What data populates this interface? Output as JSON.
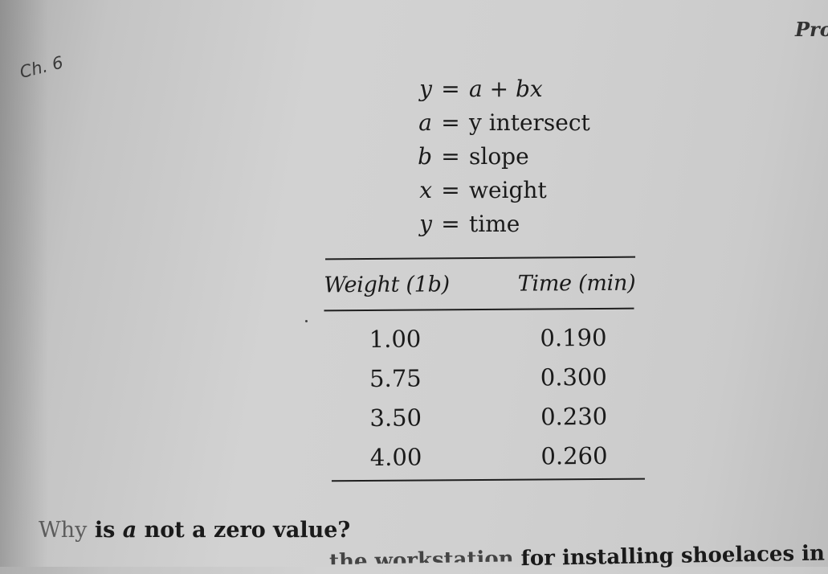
{
  "header_fragment": "Pro",
  "handwritten_note": "Ch. 6",
  "equations": [
    {
      "lhs": "y",
      "sign": "=",
      "rhs": "a + bx"
    },
    {
      "lhs": "a",
      "sign": "=",
      "rhs": "y intersect"
    },
    {
      "lhs": "b",
      "sign": "=",
      "rhs": "slope"
    },
    {
      "lhs": "x",
      "sign": "=",
      "rhs": "weight"
    },
    {
      "lhs": "y",
      "sign": "=",
      "rhs": "time"
    }
  ],
  "table": {
    "headers": [
      "Weight (1b)",
      "Time (min)"
    ],
    "rows": [
      [
        "1.00",
        "0.190"
      ],
      [
        "5.75",
        "0.300"
      ],
      [
        "3.50",
        "0.230"
      ],
      [
        "4.00",
        "0.260"
      ]
    ]
  },
  "question": {
    "first_word": "Why",
    "is": "is",
    "var": "a",
    "rest": "not a zero value?"
  },
  "cutoff_line": {
    "partial": "the workstation",
    "text": "for installing shoelaces in shoes."
  }
}
